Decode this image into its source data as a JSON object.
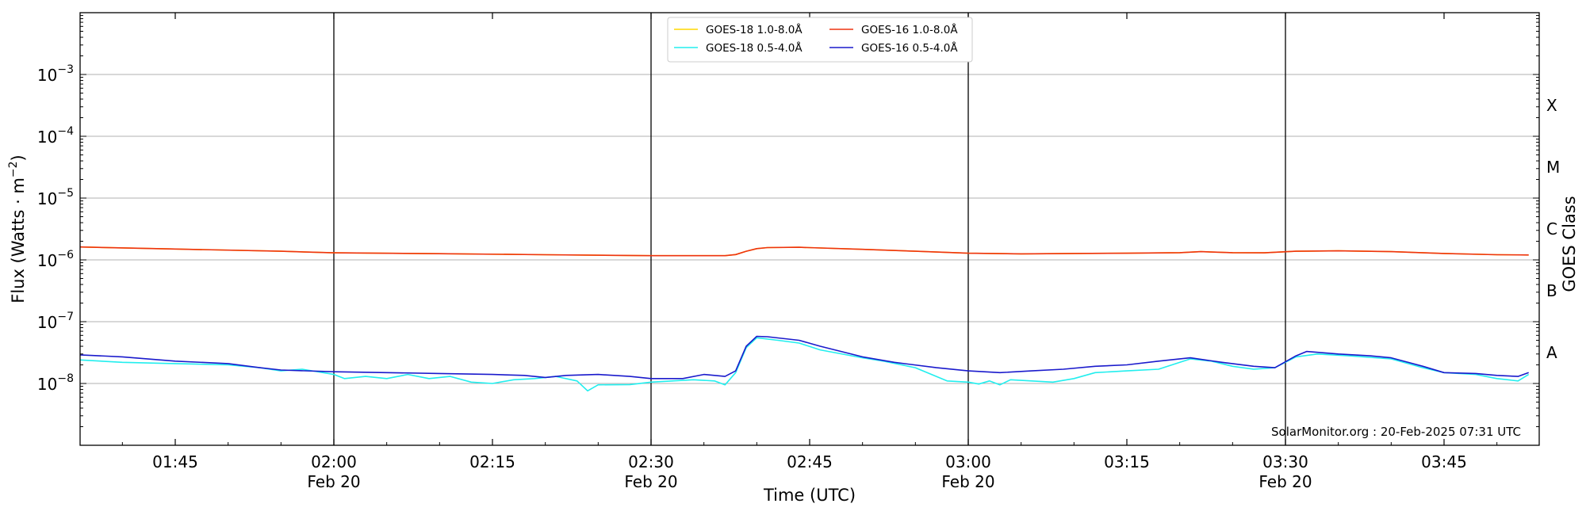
{
  "chart_data": {
    "type": "line",
    "xlabel": "Time (UTC)",
    "ylabel_main": "Flux (Watts · m",
    "ylabel_sup": "−2",
    "ylabel_close": ")",
    "right_axis_label": "GOES Class",
    "y_scale": "log",
    "ylim": [
      1e-09,
      0.01
    ],
    "xlim": [
      "01:36",
      "03:54"
    ],
    "x_ticks": [
      {
        "t": "01:45",
        "label": "01:45",
        "sub": ""
      },
      {
        "t": "02:00",
        "label": "02:00",
        "sub": "Feb 20"
      },
      {
        "t": "02:15",
        "label": "02:15",
        "sub": ""
      },
      {
        "t": "02:30",
        "label": "02:30",
        "sub": "Feb 20"
      },
      {
        "t": "02:45",
        "label": "02:45",
        "sub": ""
      },
      {
        "t": "03:00",
        "label": "03:00",
        "sub": "Feb 20"
      },
      {
        "t": "03:15",
        "label": "03:15",
        "sub": ""
      },
      {
        "t": "03:30",
        "label": "03:30",
        "sub": "Feb 20"
      },
      {
        "t": "03:45",
        "label": "03:45",
        "sub": ""
      }
    ],
    "day_lines": [
      "02:00",
      "02:30",
      "03:00",
      "03:30"
    ],
    "y_ticks": [
      {
        "value": 0.001,
        "base": "10",
        "exp": "−3"
      },
      {
        "value": 0.0001,
        "base": "10",
        "exp": "−4"
      },
      {
        "value": 1e-05,
        "base": "10",
        "exp": "−5"
      },
      {
        "value": 1e-06,
        "base": "10",
        "exp": "−6"
      },
      {
        "value": 1e-07,
        "base": "10",
        "exp": "−7"
      },
      {
        "value": 1e-08,
        "base": "10",
        "exp": "−8"
      }
    ],
    "goes_classes": [
      {
        "label": "X",
        "lo": 0.0001,
        "hi": 0.001
      },
      {
        "label": "M",
        "lo": 1e-05,
        "hi": 0.0001
      },
      {
        "label": "C",
        "lo": 1e-06,
        "hi": 1e-05
      },
      {
        "label": "B",
        "lo": 1e-07,
        "hi": 1e-06
      },
      {
        "label": "A",
        "lo": 1e-08,
        "hi": 1e-07
      }
    ],
    "grid": true,
    "legend_position": "top-center",
    "series": [
      {
        "name": "GOES-18 1.0-8.0Å",
        "color": "#ffd700",
        "points": [
          [
            "01:36",
            1.62e-06
          ],
          [
            "01:45",
            1.5e-06
          ],
          [
            "01:55",
            1.38e-06
          ],
          [
            "02:00",
            1.3e-06
          ],
          [
            "02:10",
            1.26e-06
          ],
          [
            "02:20",
            1.21e-06
          ],
          [
            "02:30",
            1.17e-06
          ],
          [
            "02:37",
            1.17e-06
          ],
          [
            "02:38",
            1.22e-06
          ],
          [
            "02:39",
            1.38e-06
          ],
          [
            "02:40",
            1.52e-06
          ],
          [
            "02:41",
            1.58e-06
          ],
          [
            "02:44",
            1.6e-06
          ],
          [
            "02:50",
            1.48e-06
          ],
          [
            "02:55",
            1.38e-06
          ],
          [
            "03:00",
            1.28e-06
          ],
          [
            "03:05",
            1.25e-06
          ],
          [
            "03:10",
            1.27e-06
          ],
          [
            "03:15",
            1.28e-06
          ],
          [
            "03:20",
            1.31e-06
          ],
          [
            "03:22",
            1.36e-06
          ],
          [
            "03:25",
            1.31e-06
          ],
          [
            "03:28",
            1.3e-06
          ],
          [
            "03:31",
            1.38e-06
          ],
          [
            "03:35",
            1.4e-06
          ],
          [
            "03:40",
            1.36e-06
          ],
          [
            "03:45",
            1.27e-06
          ],
          [
            "03:50",
            1.21e-06
          ],
          [
            "03:53",
            1.2e-06
          ]
        ]
      },
      {
        "name": "GOES-16 1.0-8.0Å",
        "color": "#ee3311",
        "points": [
          [
            "01:36",
            1.62e-06
          ],
          [
            "01:45",
            1.5e-06
          ],
          [
            "01:55",
            1.38e-06
          ],
          [
            "02:00",
            1.3e-06
          ],
          [
            "02:10",
            1.26e-06
          ],
          [
            "02:20",
            1.21e-06
          ],
          [
            "02:30",
            1.17e-06
          ],
          [
            "02:37",
            1.17e-06
          ],
          [
            "02:38",
            1.22e-06
          ],
          [
            "02:39",
            1.38e-06
          ],
          [
            "02:40",
            1.52e-06
          ],
          [
            "02:41",
            1.58e-06
          ],
          [
            "02:44",
            1.6e-06
          ],
          [
            "02:50",
            1.48e-06
          ],
          [
            "02:55",
            1.38e-06
          ],
          [
            "03:00",
            1.28e-06
          ],
          [
            "03:05",
            1.25e-06
          ],
          [
            "03:10",
            1.27e-06
          ],
          [
            "03:15",
            1.28e-06
          ],
          [
            "03:20",
            1.31e-06
          ],
          [
            "03:22",
            1.36e-06
          ],
          [
            "03:25",
            1.31e-06
          ],
          [
            "03:28",
            1.3e-06
          ],
          [
            "03:31",
            1.38e-06
          ],
          [
            "03:35",
            1.4e-06
          ],
          [
            "03:40",
            1.36e-06
          ],
          [
            "03:45",
            1.27e-06
          ],
          [
            "03:50",
            1.21e-06
          ],
          [
            "03:53",
            1.2e-06
          ]
        ]
      },
      {
        "name": "GOES-18 0.5-4.0Å",
        "color": "#22eeee",
        "points": [
          [
            "01:36",
            2.4e-08
          ],
          [
            "01:40",
            2.2e-08
          ],
          [
            "01:45",
            2.1e-08
          ],
          [
            "01:50",
            2e-08
          ],
          [
            "01:53",
            1.8e-08
          ],
          [
            "01:55",
            1.6e-08
          ],
          [
            "01:57",
            1.7e-08
          ],
          [
            "02:00",
            1.4e-08
          ],
          [
            "02:01",
            1.2e-08
          ],
          [
            "02:03",
            1.3e-08
          ],
          [
            "02:05",
            1.2e-08
          ],
          [
            "02:07",
            1.4e-08
          ],
          [
            "02:09",
            1.2e-08
          ],
          [
            "02:11",
            1.3e-08
          ],
          [
            "02:13",
            1.05e-08
          ],
          [
            "02:15",
            1e-08
          ],
          [
            "02:17",
            1.15e-08
          ],
          [
            "02:19",
            1.2e-08
          ],
          [
            "02:21",
            1.3e-08
          ],
          [
            "02:23",
            1.1e-08
          ],
          [
            "02:24",
            7.6e-09
          ],
          [
            "02:25",
            9.5e-09
          ],
          [
            "02:28",
            9.6e-09
          ],
          [
            "02:30",
            1.05e-08
          ],
          [
            "02:32",
            1.1e-08
          ],
          [
            "02:34",
            1.15e-08
          ],
          [
            "02:36",
            1.1e-08
          ],
          [
            "02:37",
            9.5e-09
          ],
          [
            "02:38",
            1.5e-08
          ],
          [
            "02:39",
            3.8e-08
          ],
          [
            "02:40",
            5.5e-08
          ],
          [
            "02:42",
            5e-08
          ],
          [
            "02:44",
            4.5e-08
          ],
          [
            "02:46",
            3.5e-08
          ],
          [
            "02:50",
            2.6e-08
          ],
          [
            "02:52",
            2.3e-08
          ],
          [
            "02:55",
            1.8e-08
          ],
          [
            "02:58",
            1.1e-08
          ],
          [
            "03:00",
            1.05e-08
          ],
          [
            "03:01",
            9.8e-09
          ],
          [
            "03:02",
            1.1e-08
          ],
          [
            "03:03",
            9.5e-09
          ],
          [
            "03:04",
            1.15e-08
          ],
          [
            "03:06",
            1.1e-08
          ],
          [
            "03:08",
            1.05e-08
          ],
          [
            "03:10",
            1.2e-08
          ],
          [
            "03:12",
            1.5e-08
          ],
          [
            "03:15",
            1.6e-08
          ],
          [
            "03:18",
            1.7e-08
          ],
          [
            "03:21",
            2.5e-08
          ],
          [
            "03:23",
            2.3e-08
          ],
          [
            "03:25",
            1.9e-08
          ],
          [
            "03:27",
            1.7e-08
          ],
          [
            "03:29",
            1.8e-08
          ],
          [
            "03:31",
            2.7e-08
          ],
          [
            "03:33",
            3e-08
          ],
          [
            "03:36",
            2.8e-08
          ],
          [
            "03:40",
            2.5e-08
          ],
          [
            "03:43",
            1.8e-08
          ],
          [
            "03:45",
            1.5e-08
          ],
          [
            "03:48",
            1.4e-08
          ],
          [
            "03:50",
            1.2e-08
          ],
          [
            "03:52",
            1.1e-08
          ],
          [
            "03:53",
            1.4e-08
          ]
        ]
      },
      {
        "name": "GOES-16 0.5-4.0Å",
        "color": "#1a1acc",
        "points": [
          [
            "01:36",
            2.9e-08
          ],
          [
            "01:40",
            2.7e-08
          ],
          [
            "01:45",
            2.3e-08
          ],
          [
            "01:50",
            2.1e-08
          ],
          [
            "01:53",
            1.8e-08
          ],
          [
            "01:55",
            1.65e-08
          ],
          [
            "02:00",
            1.55e-08
          ],
          [
            "02:05",
            1.5e-08
          ],
          [
            "02:10",
            1.45e-08
          ],
          [
            "02:15",
            1.4e-08
          ],
          [
            "02:18",
            1.35e-08
          ],
          [
            "02:20",
            1.25e-08
          ],
          [
            "02:22",
            1.35e-08
          ],
          [
            "02:25",
            1.4e-08
          ],
          [
            "02:28",
            1.3e-08
          ],
          [
            "02:30",
            1.2e-08
          ],
          [
            "02:33",
            1.2e-08
          ],
          [
            "02:35",
            1.4e-08
          ],
          [
            "02:37",
            1.3e-08
          ],
          [
            "02:38",
            1.6e-08
          ],
          [
            "02:39",
            4e-08
          ],
          [
            "02:40",
            5.8e-08
          ],
          [
            "02:41",
            5.7e-08
          ],
          [
            "02:44",
            5e-08
          ],
          [
            "02:46",
            4e-08
          ],
          [
            "02:50",
            2.7e-08
          ],
          [
            "02:53",
            2.2e-08
          ],
          [
            "02:57",
            1.8e-08
          ],
          [
            "03:00",
            1.6e-08
          ],
          [
            "03:03",
            1.5e-08
          ],
          [
            "03:06",
            1.6e-08
          ],
          [
            "03:09",
            1.7e-08
          ],
          [
            "03:12",
            1.9e-08
          ],
          [
            "03:15",
            2e-08
          ],
          [
            "03:18",
            2.3e-08
          ],
          [
            "03:21",
            2.6e-08
          ],
          [
            "03:24",
            2.2e-08
          ],
          [
            "03:27",
            1.9e-08
          ],
          [
            "03:29",
            1.8e-08
          ],
          [
            "03:31",
            2.8e-08
          ],
          [
            "03:32",
            3.3e-08
          ],
          [
            "03:35",
            3e-08
          ],
          [
            "03:38",
            2.8e-08
          ],
          [
            "03:40",
            2.6e-08
          ],
          [
            "03:43",
            1.9e-08
          ],
          [
            "03:45",
            1.5e-08
          ],
          [
            "03:48",
            1.45e-08
          ],
          [
            "03:50",
            1.35e-08
          ],
          [
            "03:52",
            1.3e-08
          ],
          [
            "03:53",
            1.5e-08
          ]
        ]
      }
    ],
    "legend_order": [
      0,
      2,
      1,
      3
    ],
    "credit": "SolarMonitor.org : 20-Feb-2025 07:31 UTC"
  }
}
